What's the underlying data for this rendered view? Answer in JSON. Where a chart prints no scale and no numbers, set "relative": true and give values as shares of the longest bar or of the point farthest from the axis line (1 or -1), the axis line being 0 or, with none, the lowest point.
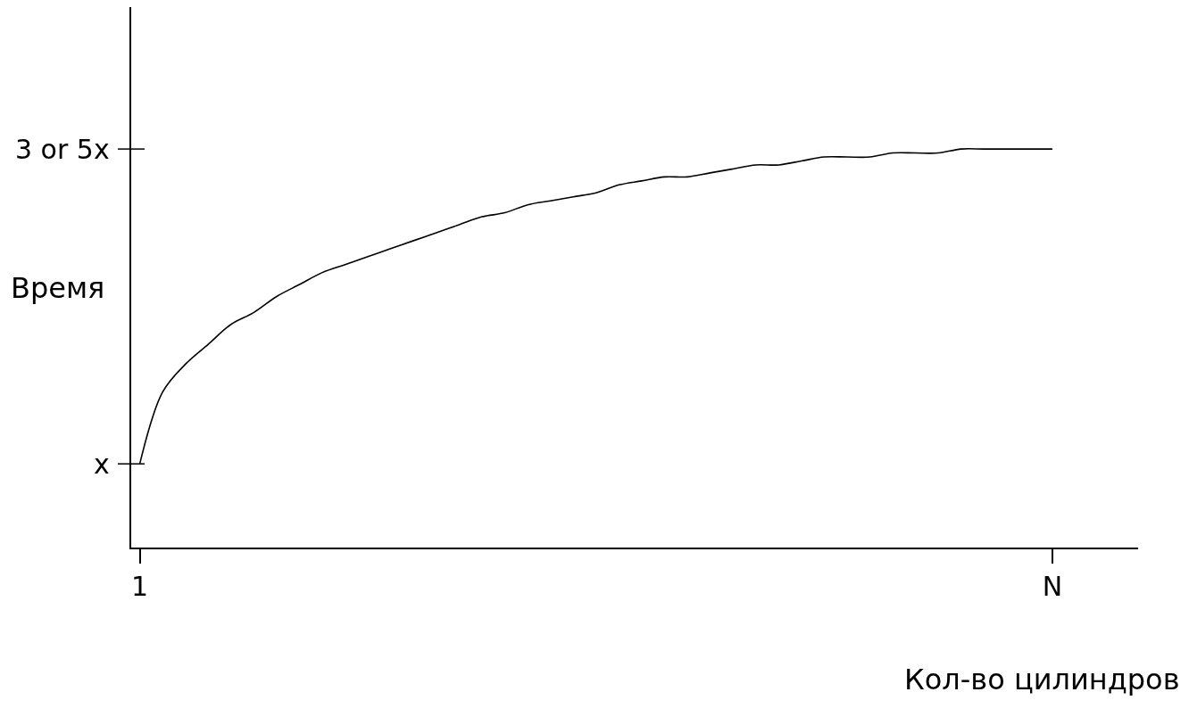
{
  "chart_data": {
    "type": "line",
    "relative": true,
    "xlabel": "Кол-во цилиндров",
    "ylabel": "Время",
    "categories": [
      "1",
      null,
      null,
      null,
      null,
      null,
      null,
      null,
      null,
      null,
      null,
      null,
      null,
      null,
      null,
      null,
      null,
      null,
      null,
      null,
      null,
      null,
      null,
      null,
      null,
      null,
      null,
      null,
      null,
      null,
      null,
      null,
      null,
      null,
      null,
      null,
      null,
      null,
      null,
      null,
      "N"
    ],
    "series": [
      {
        "color": "#000000",
        "values": [
          0.21,
          0.39,
          0.46,
          0.51,
          0.56,
          0.59,
          0.63,
          0.66,
          0.69,
          0.71,
          0.73,
          0.75,
          0.77,
          0.79,
          0.81,
          0.83,
          0.84,
          0.86,
          0.87,
          0.88,
          0.89,
          0.91,
          0.92,
          0.93,
          0.93,
          0.94,
          0.95,
          0.96,
          0.96,
          0.97,
          0.98,
          0.98,
          0.98,
          0.99,
          0.99,
          0.99,
          1.0,
          1.0,
          1.0,
          1.0,
          1.0
        ]
      }
    ],
    "annotations": [
      "x",
      "3 or 5x"
    ],
    "line_style": "solid"
  }
}
